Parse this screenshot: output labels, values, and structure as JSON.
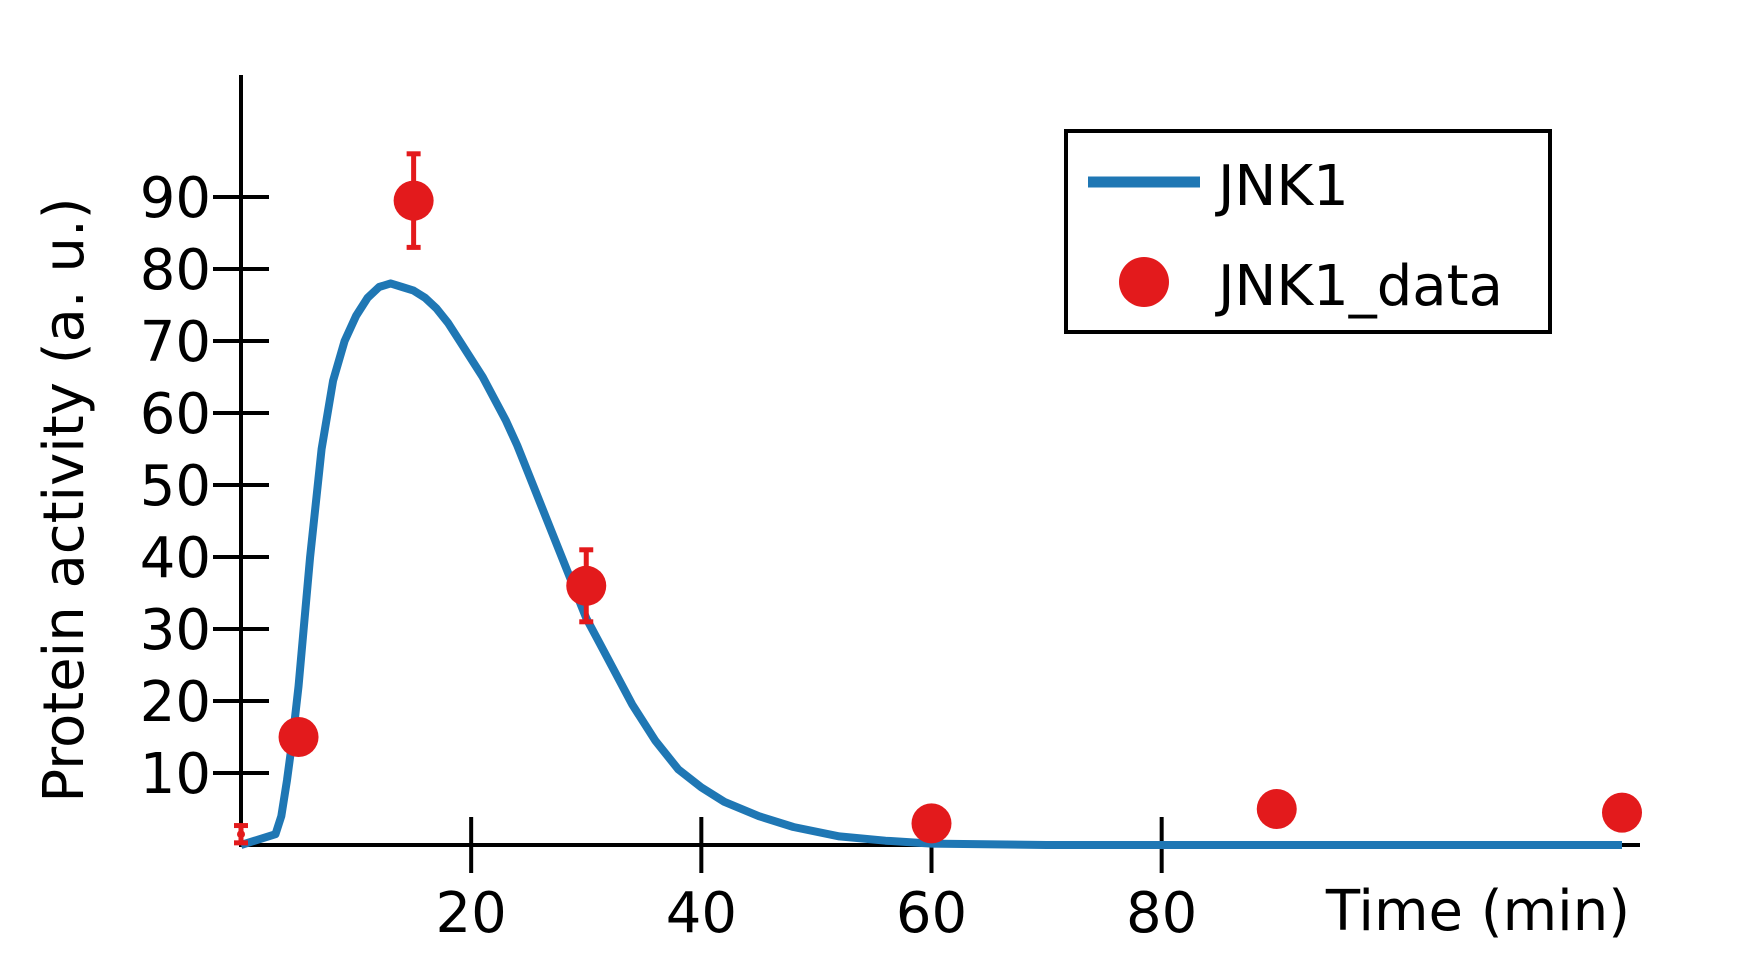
{
  "chart_data": {
    "type": "line",
    "title": "",
    "xlabel": "Time (min)",
    "ylabel": "Protein activity (a. u.)",
    "xlim": [
      0,
      120
    ],
    "ylim": [
      0,
      100
    ],
    "xticks": [
      20,
      40,
      60,
      80
    ],
    "yticks": [
      10,
      20,
      30,
      40,
      50,
      60,
      70,
      80,
      90
    ],
    "grid": false,
    "legend_position": "top-right",
    "series": [
      {
        "name": "JNK1",
        "kind": "line",
        "color": "#1f77b4",
        "x": [
          0,
          3,
          3.5,
          4,
          4.5,
          5,
          6,
          7,
          8,
          9,
          10,
          11,
          12,
          13,
          14,
          15,
          16,
          17,
          18,
          19,
          20,
          21,
          22,
          23,
          24,
          25,
          26,
          27,
          28,
          29,
          30,
          31,
          32,
          34,
          36,
          38,
          40,
          42,
          45,
          48,
          52,
          56,
          60,
          70,
          80,
          90,
          100,
          110,
          120
        ],
        "y": [
          0,
          1.5,
          4,
          9,
          15,
          22,
          40,
          55,
          64.5,
          70,
          73.5,
          76,
          77.5,
          78,
          77.5,
          77,
          76,
          74.5,
          72.5,
          70,
          67.5,
          65,
          62,
          59,
          55.5,
          51.5,
          47.5,
          43.5,
          39.5,
          35.5,
          31.5,
          28.5,
          25.5,
          19.5,
          14.5,
          10.5,
          8,
          6,
          4,
          2.5,
          1.2,
          0.6,
          0.2,
          0,
          0,
          0,
          0,
          0,
          0
        ]
      },
      {
        "name": "JNK1_data",
        "kind": "scatter",
        "color": "#e31a1c",
        "x": [
          0,
          5,
          15,
          30,
          60,
          90,
          120
        ],
        "y": [
          1.5,
          15,
          89.5,
          36,
          3,
          5,
          4.5
        ],
        "error": [
          1.2,
          1.5,
          6.5,
          5,
          0.5,
          0.5,
          0.5
        ]
      }
    ]
  }
}
